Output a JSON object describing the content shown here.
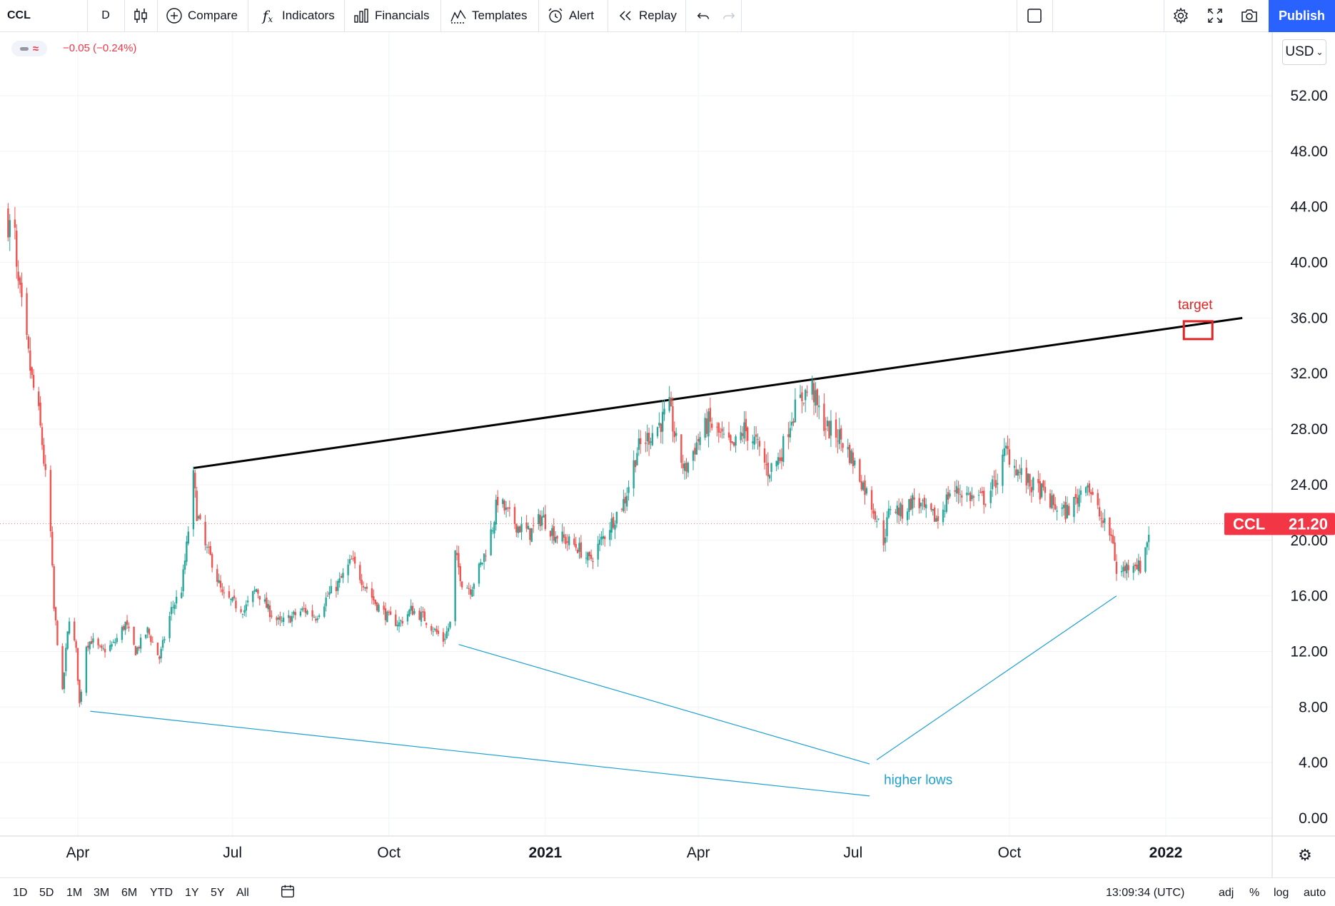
{
  "toolbar": {
    "symbol": "CCL",
    "interval": "D",
    "compare": "Compare",
    "indicators": "Indicators",
    "financials": "Financials",
    "templates": "Templates",
    "alert": "Alert",
    "replay": "Replay",
    "publish": "Publish"
  },
  "legend": {
    "change": "−0.05 (−0.24%)"
  },
  "currency": "USD",
  "price_label": {
    "symbol": "CCL",
    "price": "21.20"
  },
  "bottom": {
    "ranges": [
      "1D",
      "5D",
      "1M",
      "3M",
      "6M",
      "YTD",
      "1Y",
      "5Y",
      "All"
    ],
    "clock": "13:09:34 (UTC)",
    "adj": "adj",
    "percent": "%",
    "log": "log",
    "auto": "auto"
  },
  "colors": {
    "up": "#26a69a",
    "down": "#ef5350",
    "trend": "#000000",
    "annotation": "#1e9fd0",
    "target": "#e02424",
    "price_tag": "#f23645"
  },
  "chart_data": {
    "type": "candlestick",
    "symbol": "CCL",
    "ylim": [
      0,
      56
    ],
    "y_ticks": [
      "0.00",
      "4.00",
      "8.00",
      "12.00",
      "16.00",
      "20.00",
      "24.00",
      "28.00",
      "32.00",
      "36.00",
      "40.00",
      "44.00",
      "48.00",
      "52.00"
    ],
    "x_ticks": [
      {
        "label": "Apr",
        "date": "2020-04-01"
      },
      {
        "label": "Jul",
        "date": "2020-07-01"
      },
      {
        "label": "Oct",
        "date": "2020-10-01"
      },
      {
        "label": "2021",
        "date": "2021-01-01",
        "bold": true
      },
      {
        "label": "Apr",
        "date": "2021-04-01"
      },
      {
        "label": "Jul",
        "date": "2021-07-01"
      },
      {
        "label": "Oct",
        "date": "2021-10-01"
      },
      {
        "label": "2022",
        "date": "2022-01-01",
        "bold": true
      }
    ],
    "close_series": [
      [
        "2020-02-20",
        43.0
      ],
      [
        "2020-02-21",
        42.5
      ],
      [
        "2020-02-24",
        41.9
      ],
      [
        "2020-02-25",
        39.0
      ],
      [
        "2020-02-27",
        37.5
      ],
      [
        "2020-03-02",
        34.0
      ],
      [
        "2020-03-05",
        31.5
      ],
      [
        "2020-03-09",
        29.0
      ],
      [
        "2020-03-11",
        27.0
      ],
      [
        "2020-03-13",
        24.5
      ],
      [
        "2020-03-16",
        20.5
      ],
      [
        "2020-03-18",
        15.0
      ],
      [
        "2020-03-19",
        14.0
      ],
      [
        "2020-03-23",
        9.0
      ],
      [
        "2020-03-25",
        12.0
      ],
      [
        "2020-03-27",
        14.5
      ],
      [
        "2020-03-31",
        12.0
      ],
      [
        "2020-04-02",
        8.2
      ],
      [
        "2020-04-06",
        12.5
      ],
      [
        "2020-04-09",
        12.8
      ],
      [
        "2020-04-15",
        12.0
      ],
      [
        "2020-04-22",
        12.5
      ],
      [
        "2020-04-29",
        14.0
      ],
      [
        "2020-05-05",
        12.0
      ],
      [
        "2020-05-12",
        13.5
      ],
      [
        "2020-05-19",
        11.5
      ],
      [
        "2020-05-26",
        15.0
      ],
      [
        "2020-06-01",
        16.5
      ],
      [
        "2020-06-04",
        19.5
      ],
      [
        "2020-06-08",
        24.5
      ],
      [
        "2020-06-10",
        22.0
      ],
      [
        "2020-06-15",
        19.5
      ],
      [
        "2020-06-19",
        18.5
      ],
      [
        "2020-06-25",
        16.0
      ],
      [
        "2020-07-01",
        15.5
      ],
      [
        "2020-07-08",
        15.0
      ],
      [
        "2020-07-15",
        16.5
      ],
      [
        "2020-07-22",
        15.0
      ],
      [
        "2020-07-29",
        14.0
      ],
      [
        "2020-08-05",
        14.5
      ],
      [
        "2020-08-12",
        15.0
      ],
      [
        "2020-08-19",
        14.5
      ],
      [
        "2020-08-26",
        16.0
      ],
      [
        "2020-09-02",
        17.0
      ],
      [
        "2020-09-09",
        18.5
      ],
      [
        "2020-09-16",
        17.0
      ],
      [
        "2020-09-23",
        15.5
      ],
      [
        "2020-09-30",
        14.5
      ],
      [
        "2020-10-07",
        14.0
      ],
      [
        "2020-10-14",
        15.0
      ],
      [
        "2020-10-21",
        14.5
      ],
      [
        "2020-10-28",
        13.5
      ],
      [
        "2020-11-02",
        12.8
      ],
      [
        "2020-11-06",
        14.0
      ],
      [
        "2020-11-09",
        19.0
      ],
      [
        "2020-11-13",
        17.0
      ],
      [
        "2020-11-18",
        16.5
      ],
      [
        "2020-11-25",
        18.5
      ],
      [
        "2020-12-01",
        21.0
      ],
      [
        "2020-12-04",
        23.0
      ],
      [
        "2020-12-09",
        22.0
      ],
      [
        "2020-12-16",
        21.0
      ],
      [
        "2020-12-23",
        20.5
      ],
      [
        "2020-12-30",
        21.7
      ],
      [
        "2021-01-06",
        20.5
      ],
      [
        "2021-01-13",
        20.0
      ],
      [
        "2021-01-20",
        19.5
      ],
      [
        "2021-01-27",
        18.5
      ],
      [
        "2021-02-03",
        20.0
      ],
      [
        "2021-02-10",
        21.5
      ],
      [
        "2021-02-17",
        23.0
      ],
      [
        "2021-02-24",
        26.5
      ],
      [
        "2021-03-03",
        27.5
      ],
      [
        "2021-03-10",
        28.5
      ],
      [
        "2021-03-15",
        29.5
      ],
      [
        "2021-03-19",
        27.0
      ],
      [
        "2021-03-24",
        25.0
      ],
      [
        "2021-03-31",
        27.0
      ],
      [
        "2021-04-07",
        28.5
      ],
      [
        "2021-04-14",
        27.5
      ],
      [
        "2021-04-21",
        26.5
      ],
      [
        "2021-04-28",
        28.0
      ],
      [
        "2021-05-05",
        27.0
      ],
      [
        "2021-05-12",
        25.0
      ],
      [
        "2021-05-19",
        26.0
      ],
      [
        "2021-05-26",
        29.0
      ],
      [
        "2021-06-02",
        30.5
      ],
      [
        "2021-06-07",
        31.0
      ],
      [
        "2021-06-10",
        29.5
      ],
      [
        "2021-06-16",
        28.0
      ],
      [
        "2021-06-23",
        27.5
      ],
      [
        "2021-06-30",
        26.0
      ],
      [
        "2021-07-07",
        24.0
      ],
      [
        "2021-07-14",
        22.0
      ],
      [
        "2021-07-19",
        20.0
      ],
      [
        "2021-07-23",
        22.5
      ],
      [
        "2021-07-30",
        22.0
      ],
      [
        "2021-08-06",
        23.0
      ],
      [
        "2021-08-13",
        22.0
      ],
      [
        "2021-08-20",
        21.5
      ],
      [
        "2021-08-27",
        23.5
      ],
      [
        "2021-09-03",
        23.5
      ],
      [
        "2021-09-10",
        23.0
      ],
      [
        "2021-09-17",
        23.0
      ],
      [
        "2021-09-24",
        24.5
      ],
      [
        "2021-09-29",
        26.5
      ],
      [
        "2021-10-06",
        25.0
      ],
      [
        "2021-10-13",
        24.0
      ],
      [
        "2021-10-20",
        23.5
      ],
      [
        "2021-10-27",
        22.5
      ],
      [
        "2021-11-03",
        22.0
      ],
      [
        "2021-11-10",
        23.0
      ],
      [
        "2021-11-15",
        24.5
      ],
      [
        "2021-11-19",
        23.0
      ],
      [
        "2021-11-24",
        21.5
      ],
      [
        "2021-12-01",
        20.0
      ],
      [
        "2021-12-03",
        17.5
      ],
      [
        "2021-12-08",
        18.0
      ],
      [
        "2021-12-13",
        18.5
      ],
      [
        "2021-12-17",
        18.0
      ],
      [
        "2021-12-21",
        20.0
      ],
      [
        "2021-12-23",
        21.2
      ]
    ],
    "trendline": {
      "from": [
        "2020-06-08",
        25.2
      ],
      "to": [
        "2022-02-15",
        36.0
      ]
    },
    "annotations": [
      {
        "text": "target",
        "date": "2022-01-20",
        "price": 35.2
      },
      {
        "text": "higher lows",
        "date": "2021-07-20",
        "price": 2.8
      }
    ],
    "higher_low_points": [
      {
        "date": "2020-04-02",
        "price": 7.7
      },
      {
        "date": "2020-11-06",
        "price": 12.5
      },
      {
        "date": "2021-12-03",
        "price": 16.0
      }
    ],
    "last_price": 21.2
  }
}
